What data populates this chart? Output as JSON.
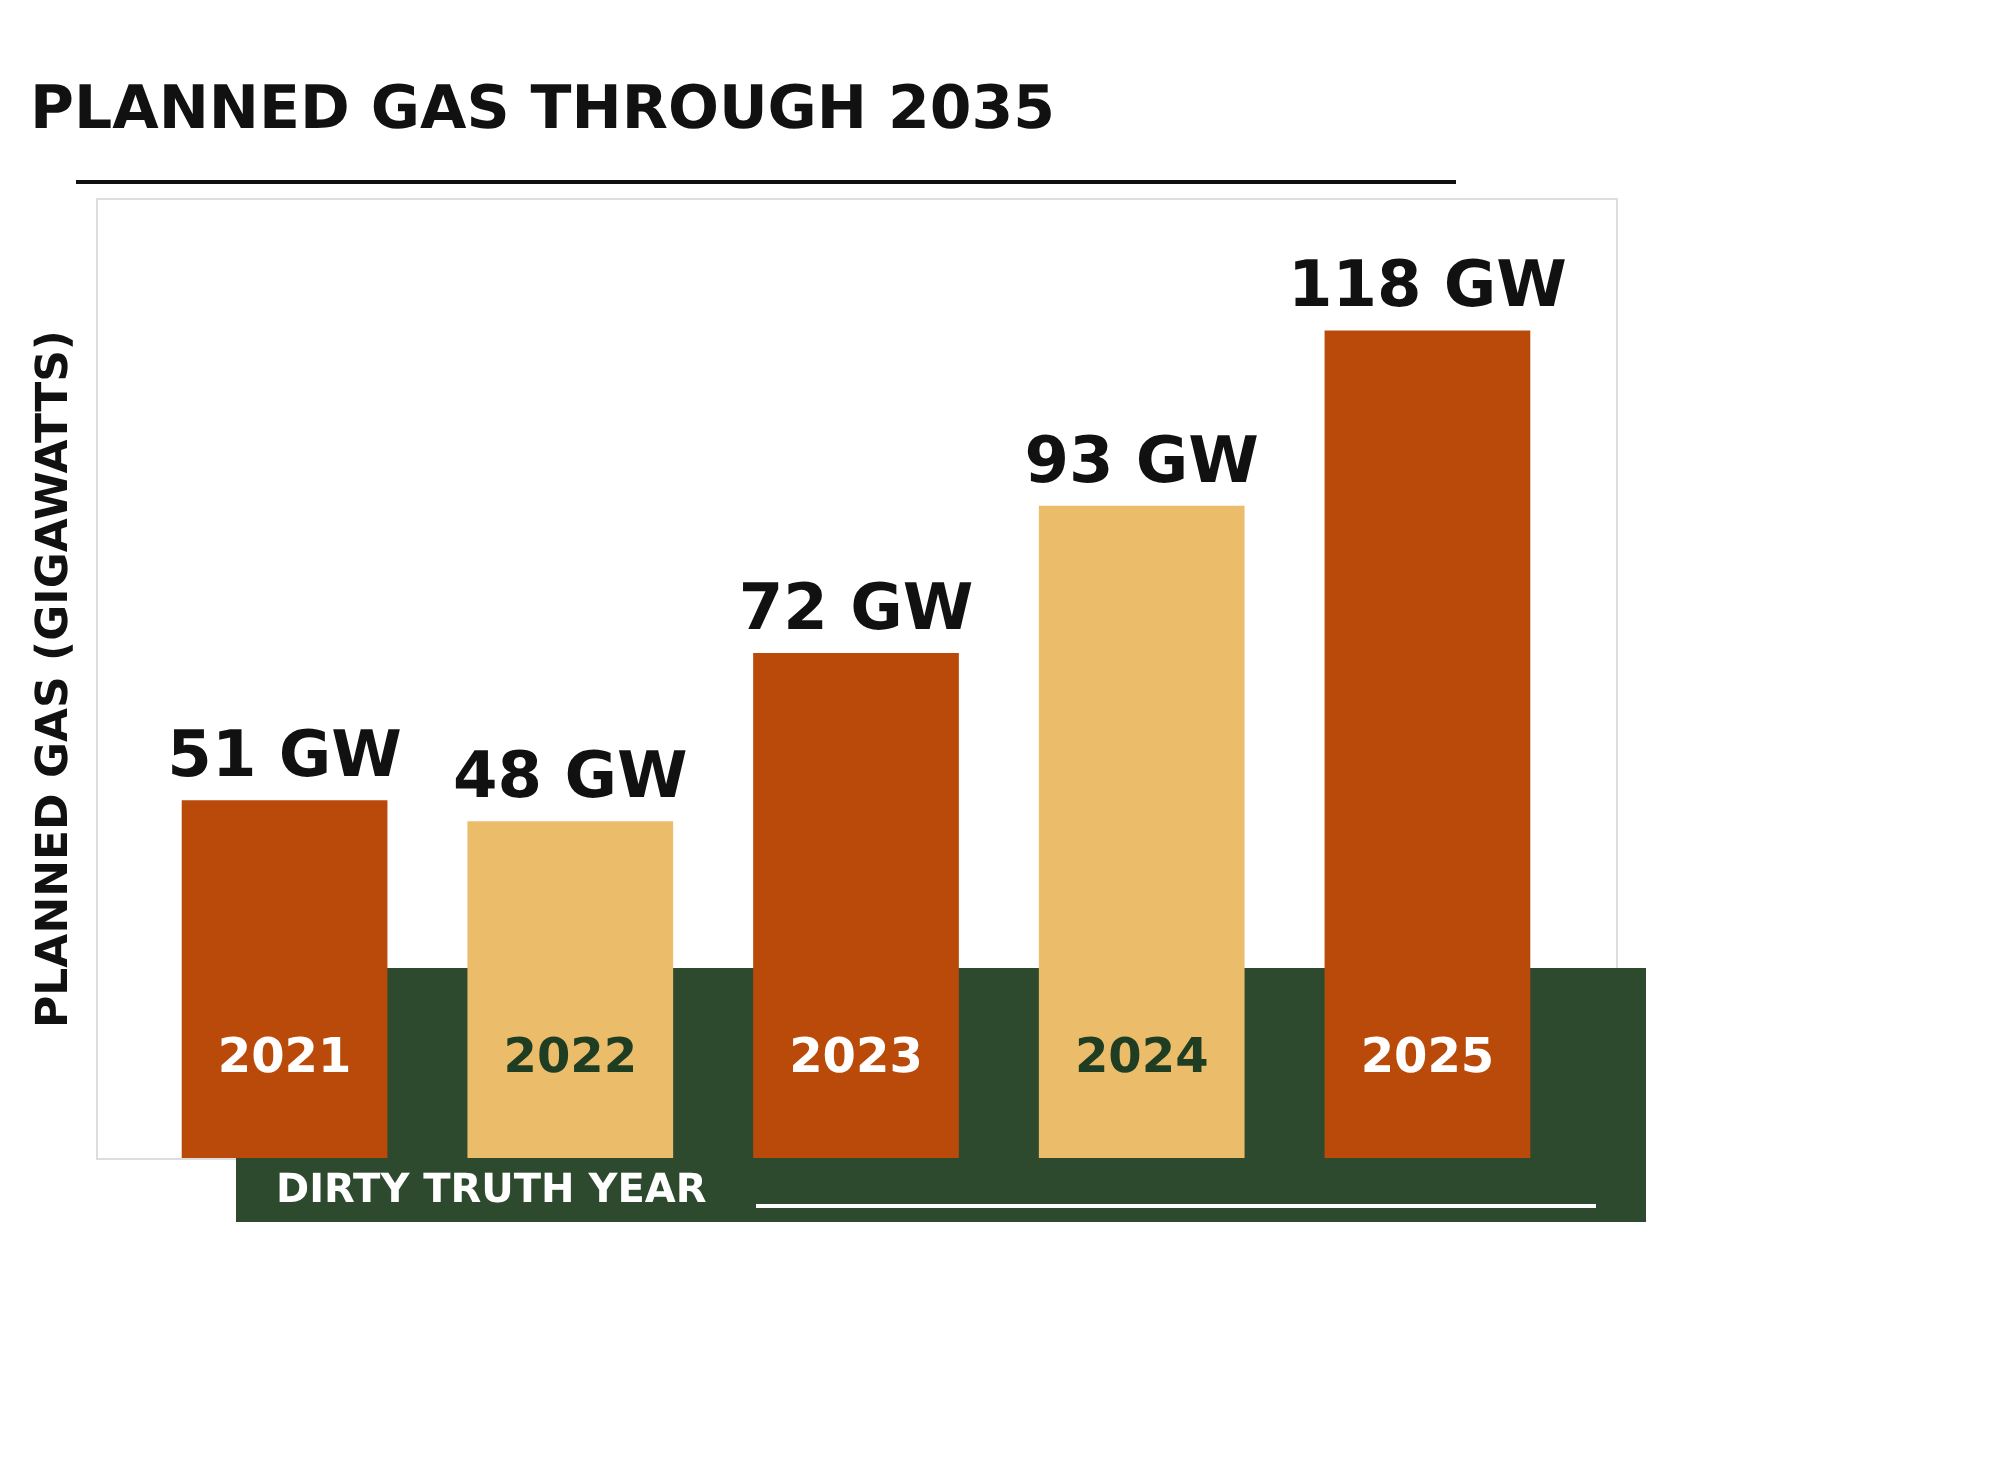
{
  "chart_data": {
    "type": "bar",
    "title": "PLANNED GAS THROUGH 2035",
    "ylabel": "PLANNED GAS (GIGAWATTS)",
    "xlabel": "DIRTY TRUTH YEAR",
    "categories": [
      "2021",
      "2022",
      "2023",
      "2024",
      "2025"
    ],
    "values": [
      51,
      48,
      72,
      93,
      118
    ],
    "colors": [
      "#b94a0a",
      "#ebbd6b",
      "#b94a0a",
      "#ebbd6b",
      "#b94a0a"
    ],
    "value_labels": [
      "51 GW",
      "48 GW",
      "72 GW",
      "93 GW",
      "118 GW"
    ]
  }
}
